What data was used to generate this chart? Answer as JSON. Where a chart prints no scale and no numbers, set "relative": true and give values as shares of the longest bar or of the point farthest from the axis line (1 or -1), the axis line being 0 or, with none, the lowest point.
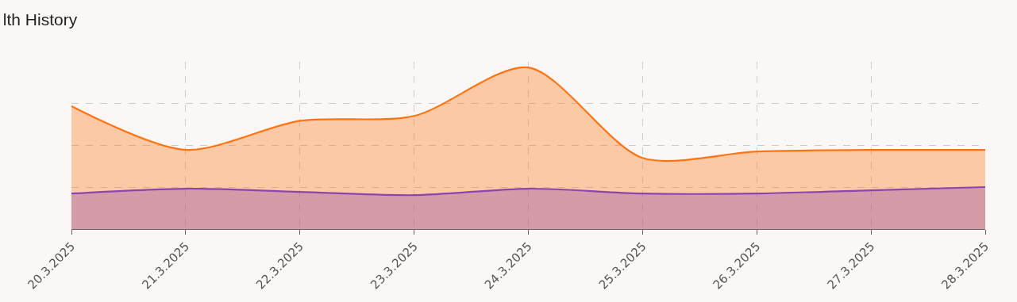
{
  "chart_data": {
    "type": "area",
    "title": "lth History",
    "relative": true,
    "grid": true,
    "marker": "none",
    "line_style": "solid",
    "categories": [
      "20.3.2025",
      "21.3.2025",
      "22.3.2025",
      "23.3.2025",
      "24.3.2025",
      "25.3.2025",
      "26.3.2025",
      "27.3.2025",
      "28.3.2025"
    ],
    "series": [
      {
        "color": "#ff7410",
        "values": [
          0.76,
          0.49,
          0.67,
          0.7,
          1,
          0.44,
          0.48,
          0.49,
          0.49
        ]
      },
      {
        "color": "#8e44ad",
        "values": [
          0.22,
          0.25,
          0.23,
          0.21,
          0.25,
          0.22,
          0.22,
          0.24,
          0.26
        ]
      }
    ]
  }
}
